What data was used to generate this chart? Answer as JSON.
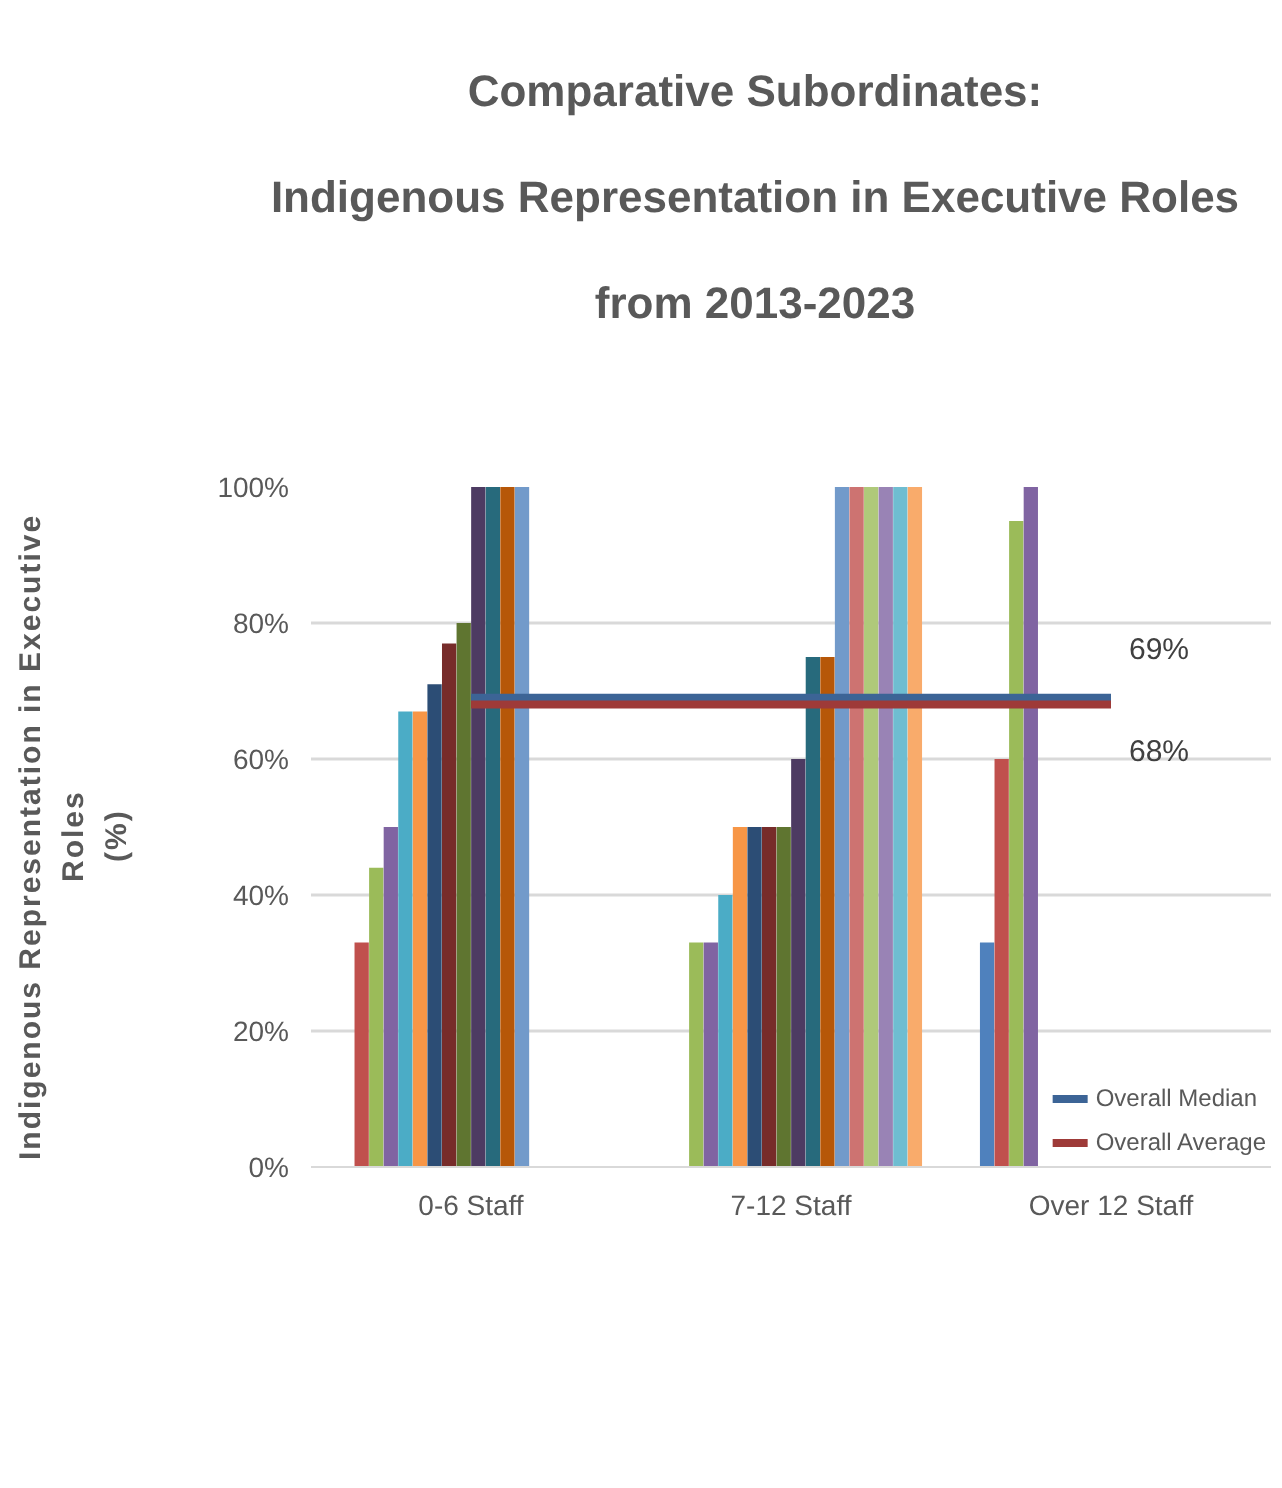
{
  "chart_data": {
    "type": "bar",
    "title": "Comparative Subordinates:\nIndigenous Representation in Executive Roles\nfrom 2013-2023",
    "ylabel": "Indigenous Representation in Executive\nRoles\n(%)",
    "categories": [
      "0-6 Staff",
      "7-12 Staff",
      "Over 12 Staff"
    ],
    "ylim": [
      0,
      100
    ],
    "yticks": [
      {
        "value": 0,
        "label": "0%"
      },
      {
        "value": 20,
        "label": "20%"
      },
      {
        "value": 40,
        "label": "40%"
      },
      {
        "value": 60,
        "label": "60%"
      },
      {
        "value": 80,
        "label": "80%"
      },
      {
        "value": 100,
        "label": "100%"
      }
    ],
    "grid": "y",
    "legend": "bottom",
    "series": [
      {
        "color": "#4f81bd",
        "values": [
          null,
          null,
          33
        ]
      },
      {
        "color": "#c0504d",
        "values": [
          33,
          null,
          60
        ]
      },
      {
        "color": "#9bbb59",
        "values": [
          44,
          33,
          95
        ]
      },
      {
        "color": "#8064a2",
        "values": [
          50,
          33,
          100
        ]
      },
      {
        "color": "#4bacc6",
        "values": [
          67,
          40,
          null
        ]
      },
      {
        "color": "#f79646",
        "values": [
          67,
          50,
          null
        ]
      },
      {
        "color": "#2c4d75",
        "values": [
          71,
          50,
          null
        ]
      },
      {
        "color": "#772c2a",
        "values": [
          77,
          50,
          null
        ]
      },
      {
        "color": "#5f7530",
        "values": [
          80,
          50,
          null
        ]
      },
      {
        "color": "#4d3b62",
        "values": [
          100,
          60,
          null
        ]
      },
      {
        "color": "#276a7c",
        "values": [
          100,
          75,
          null
        ]
      },
      {
        "color": "#b65708",
        "values": [
          100,
          75,
          null
        ]
      },
      {
        "color": "#729aca",
        "values": [
          100,
          100,
          null
        ]
      },
      {
        "color": "#cd7371",
        "values": [
          null,
          100,
          null
        ]
      },
      {
        "color": "#afc97a",
        "values": [
          null,
          100,
          null
        ]
      },
      {
        "color": "#9983b5",
        "values": [
          null,
          100,
          null
        ]
      },
      {
        "color": "#6fbdd1",
        "values": [
          null,
          100,
          null
        ]
      },
      {
        "color": "#f9ab6b",
        "values": [
          null,
          100,
          null
        ]
      },
      {
        "type": "line",
        "name": "Overall Median",
        "color": "#3c6496",
        "values": [
          69,
          69,
          69
        ],
        "value_labels": [
          null,
          null,
          "69%"
        ]
      },
      {
        "type": "line",
        "name": "Overall Average",
        "color": "#9e3a38",
        "values": [
          68,
          68,
          68
        ],
        "value_labels": [
          null,
          null,
          "68%"
        ]
      }
    ]
  }
}
